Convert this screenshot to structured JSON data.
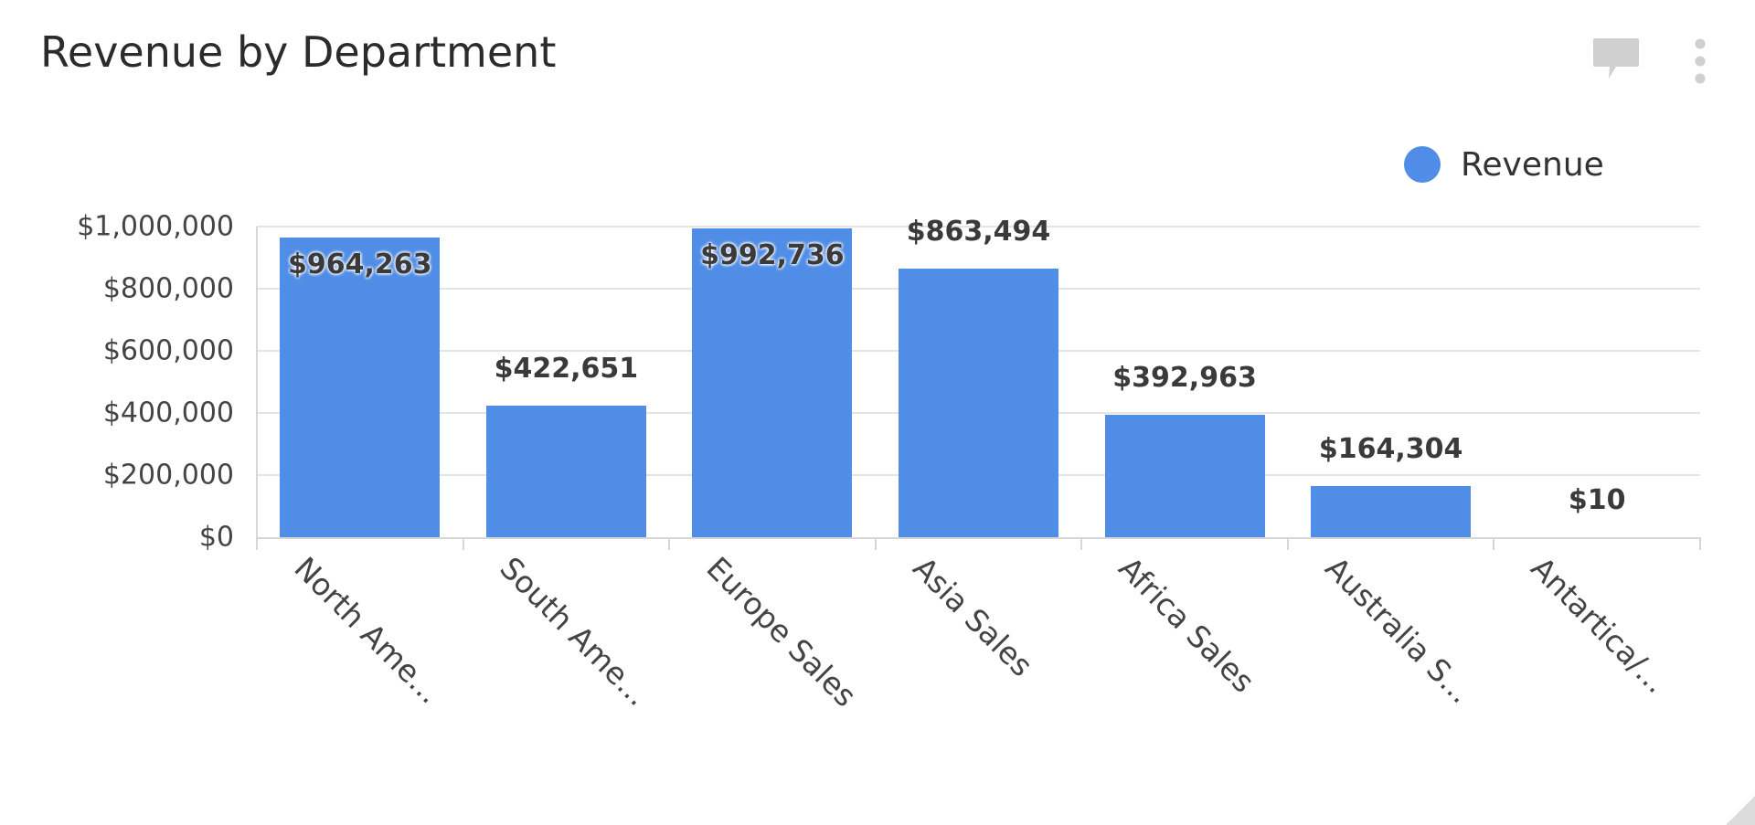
{
  "widget": {
    "title": "Revenue by Department",
    "comment_icon": "comment-icon",
    "more_icon": "more-vertical-icon",
    "resize_icon": "resize-corner-icon"
  },
  "colors": {
    "bar": "#508DE6",
    "legend": "#508DE6",
    "gridline": "#e4e4e4",
    "axis": "#d6d6d6",
    "icon": "#d0d0d0"
  },
  "legend": {
    "items": [
      {
        "label": "Revenue",
        "color": "#508DE6"
      }
    ]
  },
  "chart_data": {
    "type": "bar",
    "title": "Revenue by Department",
    "xlabel": "",
    "ylabel": "",
    "categories": [
      "North America Sales",
      "South America Sales",
      "Europe Sales",
      "Asia Sales",
      "Africa Sales",
      "Australia Sales",
      "Antartica/..."
    ],
    "category_labels_displayed": [
      "North Ame...",
      "South Ame...",
      "Europe Sales",
      "Asia Sales",
      "Africa Sales",
      "Australia S...",
      "Antartica/..."
    ],
    "series": [
      {
        "name": "Revenue",
        "color": "#508DE6",
        "values": [
          964263,
          422651,
          992736,
          863494,
          392963,
          164304,
          10
        ],
        "value_labels": [
          "$964,263",
          "$422,651",
          "$992,736",
          "$863,494",
          "$392,963",
          "$164,304",
          "$10"
        ]
      }
    ],
    "ylim": [
      0,
      1000000
    ],
    "yticks": [
      0,
      200000,
      400000,
      600000,
      800000,
      1000000
    ],
    "ytick_labels": [
      "$0",
      "$200,000",
      "$400,000",
      "$600,000",
      "$800,000",
      "$1,000,000"
    ],
    "grid": true,
    "legend_position": "top-right"
  }
}
